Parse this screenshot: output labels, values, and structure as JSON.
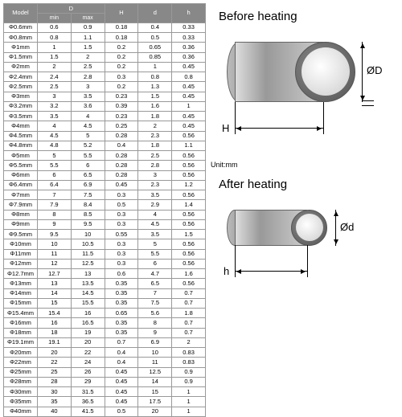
{
  "table": {
    "headers": {
      "model": "Model",
      "D": "D",
      "Dmin": "min",
      "Dmax": "max",
      "H": "H",
      "d": "d",
      "h": "h"
    },
    "rows": [
      [
        "Φ0.6mm",
        "0.6",
        "0.9",
        "0.18",
        "0.4",
        "0.33"
      ],
      [
        "Φ0.8mm",
        "0.8",
        "1.1",
        "0.18",
        "0.5",
        "0.33"
      ],
      [
        "Φ1mm",
        "1",
        "1.5",
        "0.2",
        "0.65",
        "0.36"
      ],
      [
        "Φ1.5mm",
        "1.5",
        "2",
        "0.2",
        "0.85",
        "0.36"
      ],
      [
        "Φ2mm",
        "2",
        "2.5",
        "0.2",
        "1",
        "0.45"
      ],
      [
        "Φ2.4mm",
        "2.4",
        "2.8",
        "0.3",
        "0.8",
        "0.8"
      ],
      [
        "Φ2.5mm",
        "2.5",
        "3",
        "0.2",
        "1.3",
        "0.45"
      ],
      [
        "Φ3mm",
        "3",
        "3.5",
        "0.23",
        "1.5",
        "0.45"
      ],
      [
        "Φ3.2mm",
        "3.2",
        "3.6",
        "0.39",
        "1.6",
        "1"
      ],
      [
        "Φ3.5mm",
        "3.5",
        "4",
        "0.23",
        "1.8",
        "0.45"
      ],
      [
        "Φ4mm",
        "4",
        "4.5",
        "0.25",
        "2",
        "0.45"
      ],
      [
        "Φ4.5mm",
        "4.5",
        "5",
        "0.28",
        "2.3",
        "0.56"
      ],
      [
        "Φ4.8mm",
        "4.8",
        "5.2",
        "0.4",
        "1.8",
        "1.1"
      ],
      [
        "Φ5mm",
        "5",
        "5.5",
        "0.28",
        "2.5",
        "0.56"
      ],
      [
        "Φ5.5mm",
        "5.5",
        "6",
        "0.28",
        "2.8",
        "0.56"
      ],
      [
        "Φ6mm",
        "6",
        "6.5",
        "0.28",
        "3",
        "0.56"
      ],
      [
        "Φ6.4mm",
        "6.4",
        "6.9",
        "0.45",
        "2.3",
        "1.2"
      ],
      [
        "Φ7mm",
        "7",
        "7.5",
        "0.3",
        "3.5",
        "0.56"
      ],
      [
        "Φ7.9mm",
        "7.9",
        "8.4",
        "0.5",
        "2.9",
        "1.4"
      ],
      [
        "Φ8mm",
        "8",
        "8.5",
        "0.3",
        "4",
        "0.56"
      ],
      [
        "Φ9mm",
        "9",
        "9.5",
        "0.3",
        "4.5",
        "0.56"
      ],
      [
        "Φ9.5mm",
        "9.5",
        "10",
        "0.55",
        "3.5",
        "1.5"
      ],
      [
        "Φ10mm",
        "10",
        "10.5",
        "0.3",
        "5",
        "0.56"
      ],
      [
        "Φ11mm",
        "11",
        "11.5",
        "0.3",
        "5.5",
        "0.56"
      ],
      [
        "Φ12mm",
        "12",
        "12.5",
        "0.3",
        "6",
        "0.56"
      ],
      [
        "Φ12.7mm",
        "12.7",
        "13",
        "0.6",
        "4.7",
        "1.6"
      ],
      [
        "Φ13mm",
        "13",
        "13.5",
        "0.35",
        "6.5",
        "0.56"
      ],
      [
        "Φ14mm",
        "14",
        "14.5",
        "0.35",
        "7",
        "0.7"
      ],
      [
        "Φ15mm",
        "15",
        "15.5",
        "0.35",
        "7.5",
        "0.7"
      ],
      [
        "Φ15.4mm",
        "15.4",
        "16",
        "0.65",
        "5.6",
        "1.8"
      ],
      [
        "Φ16mm",
        "16",
        "16.5",
        "0.35",
        "8",
        "0.7"
      ],
      [
        "Φ18mm",
        "18",
        "19",
        "0.35",
        "9",
        "0.7"
      ],
      [
        "Φ19.1mm",
        "19.1",
        "20",
        "0.7",
        "6.9",
        "2"
      ],
      [
        "Φ20mm",
        "20",
        "22",
        "0.4",
        "10",
        "0.83"
      ],
      [
        "Φ22mm",
        "22",
        "24",
        "0.4",
        "11",
        "0.83"
      ],
      [
        "Φ25mm",
        "25",
        "26",
        "0.45",
        "12.5",
        "0.9"
      ],
      [
        "Φ28mm",
        "28",
        "29",
        "0.45",
        "14",
        "0.9"
      ],
      [
        "Φ30mm",
        "30",
        "31.5",
        "0.45",
        "15",
        "1"
      ],
      [
        "Φ35mm",
        "35",
        "36.5",
        "0.45",
        "17.5",
        "1"
      ],
      [
        "Φ40mm",
        "40",
        "41.5",
        "0.5",
        "20",
        "1"
      ]
    ]
  },
  "unit": "Unit:mm",
  "before": {
    "title": "Before heating",
    "diam": "ØD",
    "height": "H"
  },
  "after": {
    "title": "After heating",
    "diam": "Ød",
    "height": "h"
  }
}
